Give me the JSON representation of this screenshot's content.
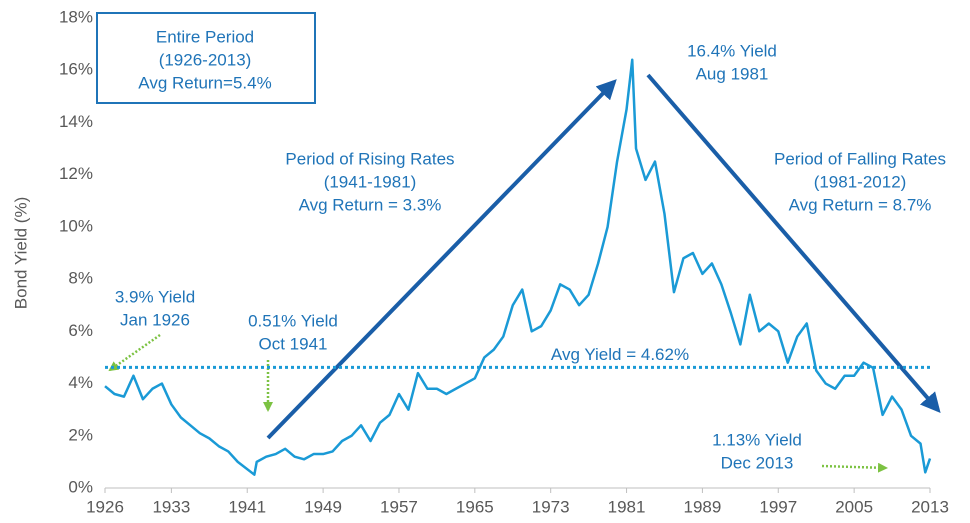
{
  "chart_data": {
    "type": "line",
    "y_label": "Bond Yield (%)",
    "x": [
      1926,
      1927,
      1928,
      1929,
      1930,
      1931,
      1932,
      1933,
      1934,
      1935,
      1936,
      1937,
      1938,
      1939,
      1940,
      1941.75,
      1942,
      1943,
      1944,
      1945,
      1946,
      1947,
      1948,
      1949,
      1950,
      1951,
      1952,
      1953,
      1954,
      1955,
      1956,
      1957,
      1958,
      1959,
      1960,
      1961,
      1962,
      1963,
      1964,
      1965,
      1966,
      1967,
      1968,
      1969,
      1970,
      1971,
      1972,
      1973,
      1974,
      1975,
      1976,
      1977,
      1978,
      1979,
      1980,
      1981,
      1981.6,
      1982,
      1983,
      1984,
      1985,
      1986,
      1987,
      1988,
      1989,
      1990,
      1991,
      1992,
      1993,
      1994,
      1995,
      1996,
      1997,
      1998,
      1999,
      2000,
      2001,
      2002,
      2003,
      2004,
      2005,
      2006,
      2007,
      2008,
      2009,
      2010,
      2011,
      2012,
      2012.5,
      2013
    ],
    "series": [
      {
        "name": "Bond Yield",
        "color": "#1a9ad6",
        "values": [
          3.9,
          3.6,
          3.5,
          4.3,
          3.4,
          3.8,
          4.0,
          3.2,
          2.7,
          2.4,
          2.1,
          1.9,
          1.6,
          1.4,
          1.0,
          0.51,
          1.0,
          1.2,
          1.3,
          1.5,
          1.2,
          1.1,
          1.3,
          1.3,
          1.4,
          1.8,
          2.0,
          2.4,
          1.8,
          2.5,
          2.8,
          3.6,
          3.0,
          4.4,
          3.8,
          3.8,
          3.6,
          3.8,
          4.0,
          4.2,
          5.0,
          5.3,
          5.8,
          7.0,
          7.6,
          6.0,
          6.2,
          6.8,
          7.8,
          7.6,
          7.0,
          7.4,
          8.6,
          10.0,
          12.5,
          14.5,
          16.4,
          13.0,
          11.8,
          12.5,
          10.5,
          7.5,
          8.8,
          9.0,
          8.2,
          8.6,
          7.8,
          6.7,
          5.5,
          7.4,
          6.0,
          6.3,
          6.0,
          4.8,
          5.8,
          6.3,
          4.5,
          4.0,
          3.8,
          4.3,
          4.3,
          4.8,
          4.6,
          2.8,
          3.5,
          3.0,
          2.0,
          1.7,
          0.6,
          1.13
        ]
      }
    ],
    "xlim": [
      1926,
      2013
    ],
    "xticks": [
      1926,
      1933,
      1941,
      1949,
      1957,
      1965,
      1973,
      1981,
      1989,
      1997,
      2005,
      2013
    ],
    "ylim": [
      0,
      18
    ],
    "yticks": [
      {
        "value": 0,
        "label": "0%"
      },
      {
        "value": 2,
        "label": "2%"
      },
      {
        "value": 4,
        "label": "4%"
      },
      {
        "value": 6,
        "label": "6%"
      },
      {
        "value": 8,
        "label": "8%"
      },
      {
        "value": 10,
        "label": "10%"
      },
      {
        "value": 12,
        "label": "12%"
      },
      {
        "value": 14,
        "label": "14%"
      },
      {
        "value": 16,
        "label": "16%"
      },
      {
        "value": 18,
        "label": "18%"
      }
    ],
    "avg_yield": {
      "value": 4.62,
      "label": "Avg Yield = 4.62%",
      "color": "#1a9ad6"
    },
    "annotations": [
      {
        "lines": [
          "Entire Period",
          "(1926-2013)",
          "Avg Return=5.4%"
        ]
      },
      {
        "lines": [
          "16.4% Yield",
          "Aug 1981"
        ]
      },
      {
        "lines": [
          "Period of Rising Rates",
          "(1941-1981)",
          "Avg Return = 3.3%"
        ]
      },
      {
        "lines": [
          "Period of Falling Rates",
          "(1981-2012)",
          "Avg Return = 8.7%"
        ]
      },
      {
        "lines": [
          "3.9% Yield",
          "Jan 1926"
        ]
      },
      {
        "lines": [
          "0.51% Yield",
          "Oct 1941"
        ]
      },
      {
        "lines": [
          "1.13% Yield",
          "Dec 2013"
        ]
      }
    ]
  }
}
